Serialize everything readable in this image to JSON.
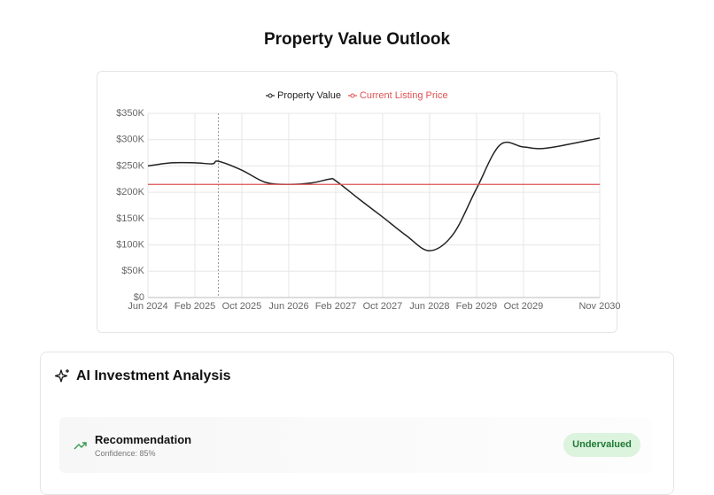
{
  "page_title": "Property Value Outlook",
  "chart_data": {
    "type": "line",
    "xlim": [
      "Jun 2024",
      "Nov 2030"
    ],
    "xticks": [
      "Jun 2024",
      "Feb 2025",
      "Oct 2025",
      "Jun 2026",
      "Feb 2027",
      "Oct 2027",
      "Jun 2028",
      "Feb 2029",
      "Oct 2029",
      "Nov 2030"
    ],
    "ylim": [
      0,
      350000
    ],
    "yticks": [
      {
        "value": 0,
        "label": "$0"
      },
      {
        "value": 50000,
        "label": "$50K"
      },
      {
        "value": 100000,
        "label": "$100K"
      },
      {
        "value": 150000,
        "label": "$150K"
      },
      {
        "value": 200000,
        "label": "$200K"
      },
      {
        "value": 250000,
        "label": "$250K"
      },
      {
        "value": 300000,
        "label": "$300K"
      },
      {
        "value": 350000,
        "label": "$350K"
      }
    ],
    "grid": true,
    "reference_x": "Jun 2025",
    "series": [
      {
        "name": "Property Value",
        "color": "#222222",
        "x": [
          "Jun 2024",
          "Oct 2024",
          "Feb 2025",
          "May 2025",
          "Jun 2025",
          "Oct 2025",
          "Feb 2026",
          "Jun 2026",
          "Oct 2026",
          "Jan 2027",
          "Feb 2027",
          "Jun 2027",
          "Oct 2027",
          "Feb 2028",
          "Jun 2028",
          "Oct 2028",
          "Feb 2029",
          "Jun 2029",
          "Oct 2029",
          "Feb 2030",
          "Nov 2030"
        ],
        "values": [
          250000,
          256000,
          256000,
          254000,
          259000,
          242000,
          219000,
          215000,
          218000,
          225000,
          222000,
          187000,
          153000,
          118000,
          89000,
          120000,
          207000,
          290000,
          286000,
          284000,
          303000
        ]
      },
      {
        "name": "Current Listing Price",
        "color": "#e05252",
        "x": [
          "Jun 2024",
          "Nov 2030"
        ],
        "values": [
          215000,
          215000
        ]
      }
    ]
  },
  "analysis": {
    "title": "AI Investment Analysis",
    "recommendation": {
      "label": "Recommendation",
      "confidence": "Confidence: 85%",
      "badge": "Undervalued"
    }
  }
}
